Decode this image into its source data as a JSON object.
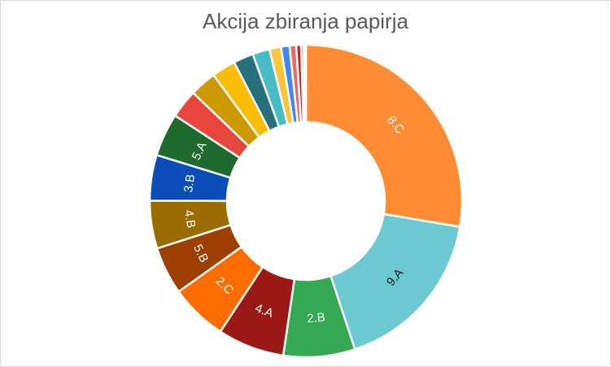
{
  "chart_data": {
    "type": "pie",
    "style": "doughnut",
    "title": "Akcija zbiranja papirja",
    "slices": [
      {
        "label": "8.C",
        "value": 28.0,
        "color": "#ff8c33",
        "text_color": "#ffffff"
      },
      {
        "label": "9.A",
        "value": 17.5,
        "color": "#6cc9d2",
        "text_color": "#1a1a1a"
      },
      {
        "label": "2.B",
        "value": 7.5,
        "color": "#34a853",
        "text_color": "#ffffff"
      },
      {
        "label": "4.A",
        "value": 7.0,
        "color": "#9c1a15",
        "text_color": "#ffffff"
      },
      {
        "label": "2.C",
        "value": 6.0,
        "color": "#ff6d00",
        "text_color": "#ffffff"
      },
      {
        "label": "5.B",
        "value": 5.0,
        "color": "#9c3f00",
        "text_color": "#ffffff"
      },
      {
        "label": "4.B",
        "value": 5.0,
        "color": "#9a6c00",
        "text_color": "#ffffff"
      },
      {
        "label": "3.B",
        "value": 4.8,
        "color": "#0b4db8",
        "text_color": "#ffffff"
      },
      {
        "label": "5.A",
        "value": 4.5,
        "color": "#1e6a2e",
        "text_color": "#ffffff"
      },
      {
        "label": "",
        "value": 3.0,
        "color": "#e8453c",
        "text_color": "#ffffff"
      },
      {
        "label": "",
        "value": 2.8,
        "color": "#cc9900",
        "text_color": "#ffffff"
      },
      {
        "label": "",
        "value": 2.5,
        "color": "#fbbc04",
        "text_color": "#ffffff"
      },
      {
        "label": "",
        "value": 2.1,
        "color": "#25707a",
        "text_color": "#ffffff"
      },
      {
        "label": "",
        "value": 1.8,
        "color": "#46bdc6",
        "text_color": "#ffffff"
      },
      {
        "label": "",
        "value": 1.2,
        "color": "#fbc63a",
        "text_color": "#ffffff"
      },
      {
        "label": "",
        "value": 0.9,
        "color": "#4285f4",
        "text_color": "#ffffff"
      },
      {
        "label": "",
        "value": 0.7,
        "color": "#ea6a6a",
        "text_color": "#ffffff"
      },
      {
        "label": "",
        "value": 0.5,
        "color": "#c5221f",
        "text_color": "#ffffff"
      },
      {
        "label": "",
        "value": 0.3,
        "color": "#8ab4a8",
        "text_color": "#ffffff"
      },
      {
        "label": "",
        "value": 0.2,
        "color": "#7fb0d8",
        "text_color": "#ffffff"
      }
    ]
  }
}
